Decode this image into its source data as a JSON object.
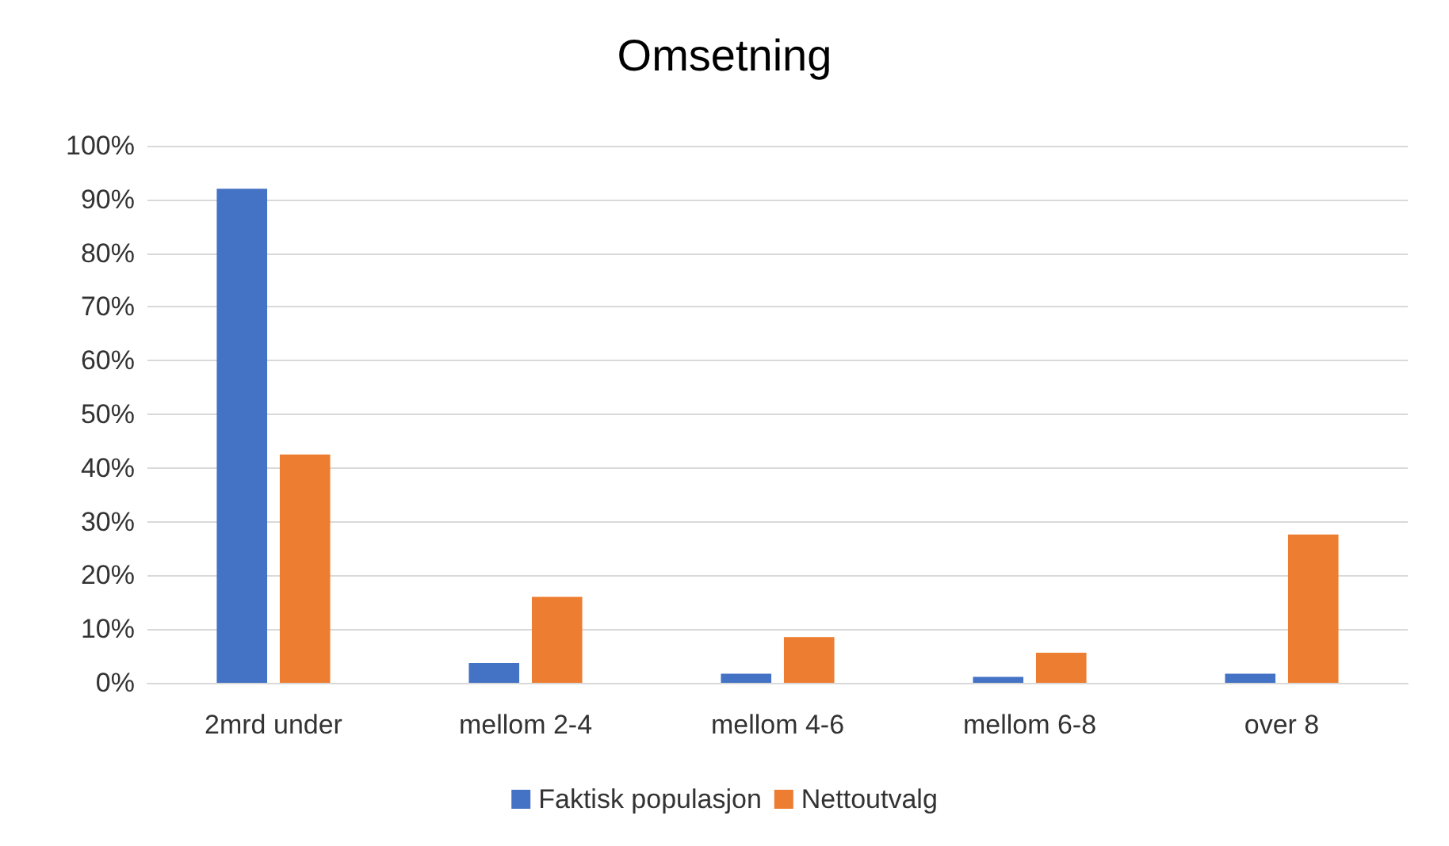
{
  "chart_data": {
    "type": "bar",
    "title": "Omsetning",
    "categories": [
      "2mrd under",
      "mellom 2-4",
      "mellom 4-6",
      "mellom 6-8",
      "over 8"
    ],
    "series": [
      {
        "name": "Faktisk populasjon",
        "color": "#4472c4",
        "values": [
          92,
          3.7,
          1.7,
          1.1,
          1.7
        ]
      },
      {
        "name": "Nettoutvalg",
        "color": "#ed7d31",
        "values": [
          42.5,
          16,
          8.5,
          5.6,
          27.6
        ]
      }
    ],
    "ylim": [
      0,
      100
    ],
    "yticks": [
      {
        "value": 0,
        "label": "0%"
      },
      {
        "value": 10,
        "label": "10%"
      },
      {
        "value": 20,
        "label": "20%"
      },
      {
        "value": 30,
        "label": "30%"
      },
      {
        "value": 40,
        "label": "40%"
      },
      {
        "value": 50,
        "label": "50%"
      },
      {
        "value": 60,
        "label": "60%"
      },
      {
        "value": 70,
        "label": "70%"
      },
      {
        "value": 80,
        "label": "80%"
      },
      {
        "value": 90,
        "label": "90%"
      },
      {
        "value": 100,
        "label": "100%"
      }
    ],
    "grid": "y",
    "legend": "bottom"
  }
}
